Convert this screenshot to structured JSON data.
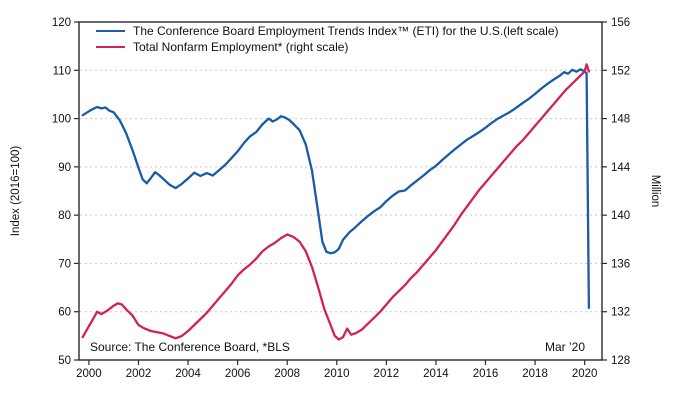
{
  "colors": {
    "eti_line": "#1a5ba8",
    "nonfarm_line": "#d2215a",
    "gridline": "#c9c9c9",
    "axis_frame": "#2b2b2b",
    "background": "#ffffff"
  },
  "chart_data": {
    "type": "line",
    "title": "",
    "legend_position": "top-left-inside",
    "grid": "horizontal-dashed",
    "x_axis": {
      "min": 1999.6,
      "max": 2020.7,
      "ticks": [
        2000,
        2002,
        2004,
        2006,
        2008,
        2010,
        2012,
        2014,
        2016,
        2018,
        2020
      ]
    },
    "y_axis_left": {
      "label": "Index (2016=100)",
      "min": 50,
      "max": 120,
      "ticks": [
        50,
        60,
        70,
        80,
        90,
        100,
        110,
        120
      ]
    },
    "y_axis_right": {
      "label": "Million",
      "min": 128,
      "max": 156,
      "ticks": [
        128,
        132,
        136,
        140,
        144,
        148,
        152,
        156
      ]
    },
    "gridline_values_left_scale": [
      60,
      70,
      80,
      90,
      100,
      110
    ],
    "annotations": {
      "source": "Source: The Conference Board, *BLS",
      "endpoint": "Mar ’20"
    },
    "series": [
      {
        "name": "The Conference Board Employment Trends Index™ (ETI) for the U.S.(left scale)",
        "axis": "left",
        "color": "#1a5ba8",
        "points": [
          [
            1999.75,
            100.7
          ],
          [
            2000,
            101.5
          ],
          [
            2000.17,
            102.0
          ],
          [
            2000.33,
            102.4
          ],
          [
            2000.5,
            102.1
          ],
          [
            2000.67,
            102.3
          ],
          [
            2000.83,
            101.6
          ],
          [
            2001,
            101.3
          ],
          [
            2001.25,
            99.6
          ],
          [
            2001.5,
            97.0
          ],
          [
            2001.75,
            93.6
          ],
          [
            2002,
            89.8
          ],
          [
            2002.17,
            87.4
          ],
          [
            2002.33,
            86.6
          ],
          [
            2002.5,
            87.7
          ],
          [
            2002.67,
            88.9
          ],
          [
            2002.83,
            88.3
          ],
          [
            2003,
            87.5
          ],
          [
            2003.25,
            86.3
          ],
          [
            2003.5,
            85.6
          ],
          [
            2003.75,
            86.5
          ],
          [
            2004,
            87.6
          ],
          [
            2004.25,
            88.8
          ],
          [
            2004.5,
            88.1
          ],
          [
            2004.75,
            88.7
          ],
          [
            2005,
            88.2
          ],
          [
            2005.25,
            89.3
          ],
          [
            2005.5,
            90.4
          ],
          [
            2005.75,
            91.8
          ],
          [
            2006,
            93.2
          ],
          [
            2006.25,
            94.9
          ],
          [
            2006.5,
            96.3
          ],
          [
            2006.75,
            97.2
          ],
          [
            2007,
            98.8
          ],
          [
            2007.25,
            100.0
          ],
          [
            2007.42,
            99.4
          ],
          [
            2007.58,
            99.8
          ],
          [
            2007.75,
            100.5
          ],
          [
            2007.92,
            100.2
          ],
          [
            2008.08,
            99.7
          ],
          [
            2008.25,
            98.9
          ],
          [
            2008.5,
            97.6
          ],
          [
            2008.75,
            94.6
          ],
          [
            2009,
            89.2
          ],
          [
            2009.25,
            80.5
          ],
          [
            2009.42,
            74.5
          ],
          [
            2009.58,
            72.4
          ],
          [
            2009.75,
            72.1
          ],
          [
            2009.92,
            72.3
          ],
          [
            2010.08,
            73.0
          ],
          [
            2010.25,
            74.9
          ],
          [
            2010.5,
            76.4
          ],
          [
            2010.75,
            77.5
          ],
          [
            2011,
            78.7
          ],
          [
            2011.25,
            79.8
          ],
          [
            2011.5,
            80.8
          ],
          [
            2011.75,
            81.6
          ],
          [
            2012,
            82.9
          ],
          [
            2012.25,
            84.0
          ],
          [
            2012.5,
            84.9
          ],
          [
            2012.75,
            85.1
          ],
          [
            2013,
            86.2
          ],
          [
            2013.25,
            87.2
          ],
          [
            2013.5,
            88.2
          ],
          [
            2013.75,
            89.3
          ],
          [
            2014,
            90.2
          ],
          [
            2014.25,
            91.4
          ],
          [
            2014.5,
            92.5
          ],
          [
            2014.75,
            93.6
          ],
          [
            2015,
            94.6
          ],
          [
            2015.25,
            95.6
          ],
          [
            2015.5,
            96.4
          ],
          [
            2015.75,
            97.2
          ],
          [
            2016,
            98.1
          ],
          [
            2016.25,
            99.1
          ],
          [
            2016.5,
            100.0
          ],
          [
            2016.75,
            100.7
          ],
          [
            2017,
            101.4
          ],
          [
            2017.25,
            102.3
          ],
          [
            2017.5,
            103.2
          ],
          [
            2017.75,
            104.1
          ],
          [
            2018,
            105.1
          ],
          [
            2018.25,
            106.2
          ],
          [
            2018.5,
            107.2
          ],
          [
            2018.75,
            108.1
          ],
          [
            2019,
            108.9
          ],
          [
            2019.17,
            109.6
          ],
          [
            2019.33,
            109.3
          ],
          [
            2019.5,
            110.1
          ],
          [
            2019.67,
            109.7
          ],
          [
            2019.83,
            110.2
          ],
          [
            2020,
            109.8
          ],
          [
            2020.08,
            109.4
          ],
          [
            2020.17,
            60.8
          ]
        ]
      },
      {
        "name": "Total Nonfarm Employment* (right scale)",
        "axis": "right",
        "color": "#d2215a",
        "points": [
          [
            1999.75,
            129.9
          ],
          [
            2000,
            130.8
          ],
          [
            2000.17,
            131.4
          ],
          [
            2000.33,
            132.0
          ],
          [
            2000.5,
            131.8
          ],
          [
            2000.75,
            132.1
          ],
          [
            2001,
            132.5
          ],
          [
            2001.17,
            132.7
          ],
          [
            2001.33,
            132.6
          ],
          [
            2001.5,
            132.2
          ],
          [
            2001.75,
            131.7
          ],
          [
            2002,
            130.9
          ],
          [
            2002.25,
            130.6
          ],
          [
            2002.5,
            130.4
          ],
          [
            2002.75,
            130.3
          ],
          [
            2003,
            130.2
          ],
          [
            2003.25,
            130.0
          ],
          [
            2003.5,
            129.8
          ],
          [
            2003.75,
            130.0
          ],
          [
            2004,
            130.4
          ],
          [
            2004.25,
            130.9
          ],
          [
            2004.5,
            131.4
          ],
          [
            2004.75,
            131.9
          ],
          [
            2005,
            132.5
          ],
          [
            2005.25,
            133.1
          ],
          [
            2005.5,
            133.7
          ],
          [
            2005.75,
            134.3
          ],
          [
            2006,
            135.0
          ],
          [
            2006.25,
            135.5
          ],
          [
            2006.5,
            135.9
          ],
          [
            2006.75,
            136.4
          ],
          [
            2007,
            137.0
          ],
          [
            2007.25,
            137.4
          ],
          [
            2007.5,
            137.7
          ],
          [
            2007.75,
            138.1
          ],
          [
            2008,
            138.4
          ],
          [
            2008.25,
            138.2
          ],
          [
            2008.5,
            137.8
          ],
          [
            2008.75,
            137.0
          ],
          [
            2009,
            135.7
          ],
          [
            2009.25,
            134.0
          ],
          [
            2009.5,
            132.2
          ],
          [
            2009.75,
            130.9
          ],
          [
            2009.92,
            130.0
          ],
          [
            2010.08,
            129.7
          ],
          [
            2010.25,
            129.9
          ],
          [
            2010.42,
            130.6
          ],
          [
            2010.58,
            130.1
          ],
          [
            2010.75,
            130.2
          ],
          [
            2011,
            130.5
          ],
          [
            2011.25,
            131.0
          ],
          [
            2011.5,
            131.5
          ],
          [
            2011.75,
            132.0
          ],
          [
            2012,
            132.6
          ],
          [
            2012.25,
            133.2
          ],
          [
            2012.5,
            133.7
          ],
          [
            2012.75,
            134.2
          ],
          [
            2013,
            134.8
          ],
          [
            2013.25,
            135.3
          ],
          [
            2013.5,
            135.9
          ],
          [
            2013.75,
            136.5
          ],
          [
            2014,
            137.1
          ],
          [
            2014.25,
            137.8
          ],
          [
            2014.5,
            138.5
          ],
          [
            2014.75,
            139.2
          ],
          [
            2015,
            140.0
          ],
          [
            2015.25,
            140.7
          ],
          [
            2015.5,
            141.4
          ],
          [
            2015.75,
            142.1
          ],
          [
            2016,
            142.7
          ],
          [
            2016.25,
            143.3
          ],
          [
            2016.5,
            143.9
          ],
          [
            2016.75,
            144.5
          ],
          [
            2017,
            145.1
          ],
          [
            2017.25,
            145.7
          ],
          [
            2017.5,
            146.2
          ],
          [
            2017.75,
            146.8
          ],
          [
            2018,
            147.4
          ],
          [
            2018.25,
            148.0
          ],
          [
            2018.5,
            148.6
          ],
          [
            2018.75,
            149.2
          ],
          [
            2019,
            149.8
          ],
          [
            2019.25,
            150.4
          ],
          [
            2019.5,
            150.9
          ],
          [
            2019.75,
            151.4
          ],
          [
            2020,
            151.9
          ],
          [
            2020.08,
            152.5
          ],
          [
            2020.17,
            151.9
          ]
        ]
      }
    ]
  }
}
